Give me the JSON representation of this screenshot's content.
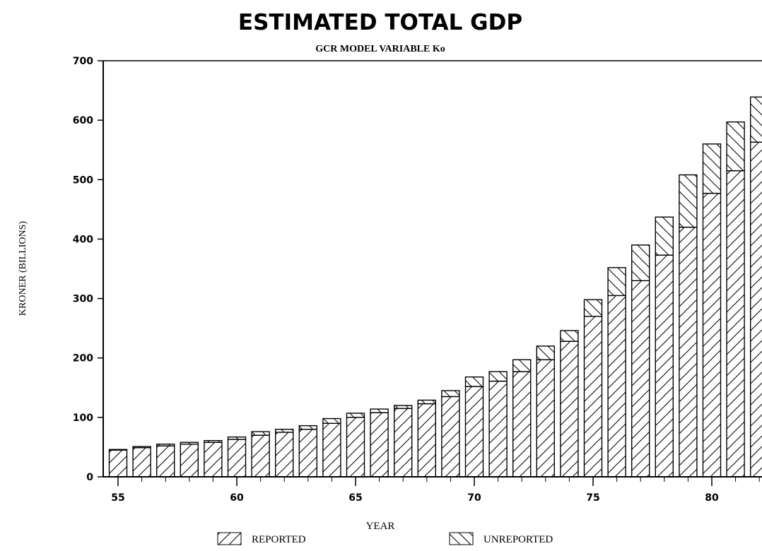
{
  "chart_data": {
    "type": "bar",
    "stacked": true,
    "title": "ESTIMATED TOTAL GDP",
    "subtitle": "GCR MODEL VARIABLE Ko",
    "xlabel": "YEAR",
    "ylabel": "KRONER (BILLIONS)",
    "ylim": [
      0,
      700
    ],
    "yticks": [
      "0",
      "100",
      "200",
      "300",
      "400",
      "500",
      "600",
      "700"
    ],
    "xticks": [
      "55",
      "60",
      "65",
      "70",
      "75",
      "80"
    ],
    "categories": [
      55,
      56,
      57,
      58,
      59,
      60,
      61,
      62,
      63,
      64,
      65,
      66,
      67,
      68,
      69,
      70,
      71,
      72,
      73,
      74,
      75,
      76,
      77,
      78,
      79,
      80,
      81,
      82
    ],
    "series": [
      {
        "name": "REPORTED",
        "values": [
          45,
          49,
          52,
          55,
          58,
          63,
          70,
          75,
          80,
          90,
          100,
          108,
          115,
          123,
          135,
          152,
          161,
          177,
          197,
          228,
          270,
          305,
          330,
          373,
          420,
          477,
          515,
          563
        ]
      },
      {
        "name": "UNREPORTED",
        "values": [
          1,
          2,
          3,
          3,
          3,
          4,
          6,
          5,
          6,
          8,
          7,
          6,
          5,
          6,
          10,
          16,
          16,
          20,
          23,
          18,
          28,
          47,
          60,
          64,
          88,
          83,
          82,
          76
        ]
      }
    ],
    "legend_position": "bottom",
    "grid": false
  }
}
